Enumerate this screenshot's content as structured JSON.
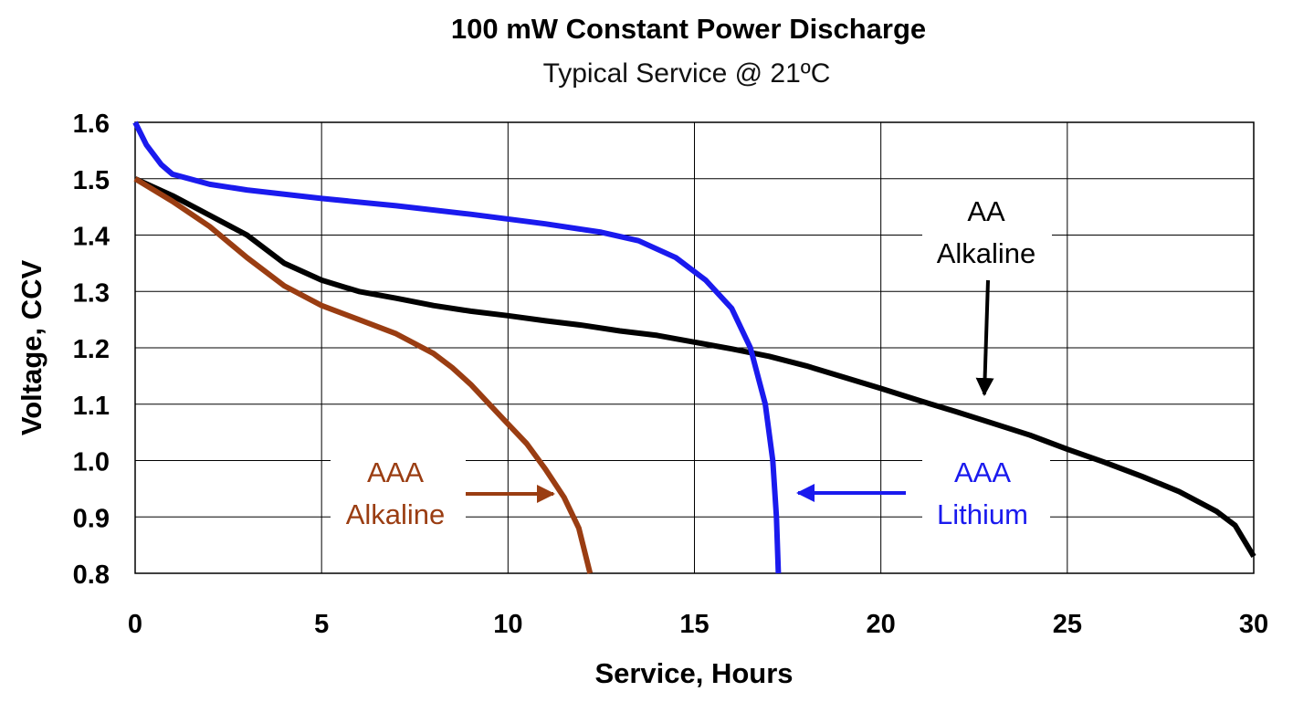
{
  "chart_data": {
    "type": "line",
    "title": "100 mW  Constant Power Discharge",
    "subtitle": "Typical Service @ 21ºC",
    "xlabel": "Service, Hours",
    "ylabel": "Voltage, CCV",
    "xlim": [
      0,
      30
    ],
    "ylim": [
      0.8,
      1.6
    ],
    "x_ticks": [
      "0",
      "5",
      "10",
      "15",
      "20",
      "25",
      "30"
    ],
    "y_ticks": [
      "0.8",
      "0.9",
      "1.0",
      "1.1",
      "1.2",
      "1.3",
      "1.4",
      "1.5",
      "1.6"
    ],
    "grid": true,
    "series": [
      {
        "name": "AA Alkaline",
        "color": "#000000",
        "points": [
          [
            0,
            1.5
          ],
          [
            1,
            1.47
          ],
          [
            2,
            1.435
          ],
          [
            3,
            1.4
          ],
          [
            4,
            1.35
          ],
          [
            5,
            1.32
          ],
          [
            6,
            1.3
          ],
          [
            7,
            1.288
          ],
          [
            8,
            1.275
          ],
          [
            9,
            1.265
          ],
          [
            10,
            1.257
          ],
          [
            11,
            1.248
          ],
          [
            12,
            1.24
          ],
          [
            13,
            1.23
          ],
          [
            14,
            1.222
          ],
          [
            15,
            1.21
          ],
          [
            16,
            1.198
          ],
          [
            17,
            1.185
          ],
          [
            18,
            1.168
          ],
          [
            19,
            1.148
          ],
          [
            20,
            1.128
          ],
          [
            21,
            1.107
          ],
          [
            22,
            1.087
          ],
          [
            23,
            1.066
          ],
          [
            24,
            1.045
          ],
          [
            25,
            1.02
          ],
          [
            26,
            0.997
          ],
          [
            27,
            0.972
          ],
          [
            28,
            0.945
          ],
          [
            29,
            0.91
          ],
          [
            29.5,
            0.885
          ],
          [
            30,
            0.83
          ]
        ]
      },
      {
        "name": "AAA Lithium",
        "color": "#1a1aee",
        "points": [
          [
            0,
            1.6
          ],
          [
            0.3,
            1.56
          ],
          [
            0.7,
            1.525
          ],
          [
            1,
            1.508
          ],
          [
            2,
            1.49
          ],
          [
            3,
            1.48
          ],
          [
            5,
            1.465
          ],
          [
            7,
            1.452
          ],
          [
            9,
            1.437
          ],
          [
            11,
            1.42
          ],
          [
            12.5,
            1.405
          ],
          [
            13.5,
            1.39
          ],
          [
            14.5,
            1.36
          ],
          [
            15.3,
            1.32
          ],
          [
            16,
            1.27
          ],
          [
            16.5,
            1.2
          ],
          [
            16.9,
            1.1
          ],
          [
            17.1,
            1.0
          ],
          [
            17.2,
            0.9
          ],
          [
            17.25,
            0.8
          ]
        ]
      },
      {
        "name": "AAA Alkaline",
        "color": "#9a3d12",
        "points": [
          [
            0,
            1.5
          ],
          [
            1,
            1.46
          ],
          [
            2,
            1.415
          ],
          [
            3,
            1.36
          ],
          [
            4,
            1.31
          ],
          [
            5,
            1.275
          ],
          [
            6,
            1.25
          ],
          [
            7,
            1.225
          ],
          [
            8,
            1.19
          ],
          [
            8.5,
            1.165
          ],
          [
            9,
            1.135
          ],
          [
            9.5,
            1.1
          ],
          [
            10,
            1.065
          ],
          [
            10.5,
            1.03
          ],
          [
            11,
            0.985
          ],
          [
            11.5,
            0.935
          ],
          [
            11.9,
            0.88
          ],
          [
            12.2,
            0.8
          ]
        ]
      }
    ],
    "annotations": [
      {
        "line1": "AA",
        "line2": "Alkaline",
        "color": "#000000"
      },
      {
        "line1": "AAA",
        "line2": "Alkaline",
        "color": "#9a3d12"
      },
      {
        "line1": "AAA",
        "line2": "Lithium",
        "color": "#1a1aee"
      }
    ]
  }
}
